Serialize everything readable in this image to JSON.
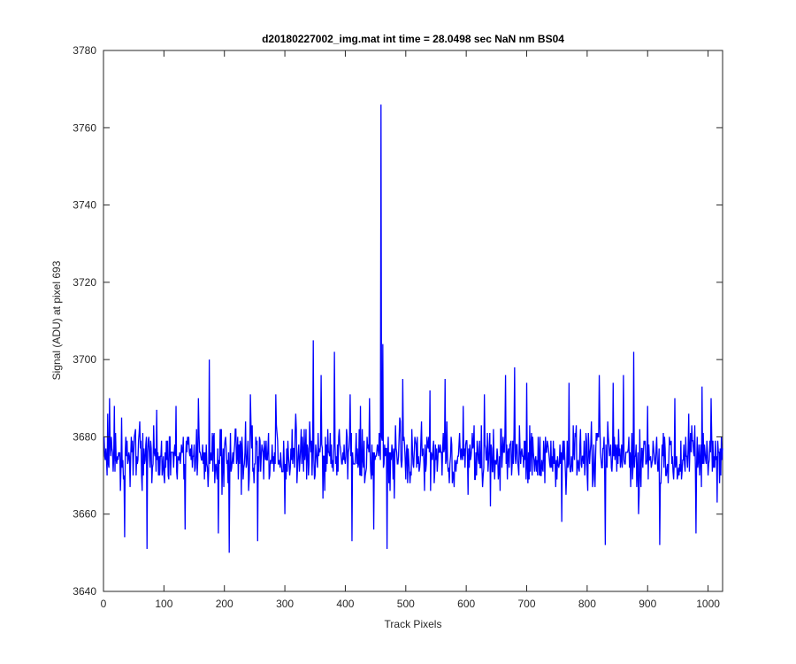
{
  "chart_data": {
    "type": "line",
    "title": "d20180227002_img.mat int time = 28.0498 sec  NaN nm BS04",
    "xlabel": "Track Pixels",
    "ylabel": "Signal (ADU) at pixel 693",
    "xlim": [
      0,
      1024
    ],
    "ylim": [
      3640,
      3780
    ],
    "xticks": [
      0,
      100,
      200,
      300,
      400,
      500,
      600,
      700,
      800,
      900,
      1000
    ],
    "xtick_labels": [
      "0",
      "100",
      "200",
      "300",
      "400",
      "500",
      "600",
      "700",
      "800",
      "900",
      "1000"
    ],
    "yticks": [
      3640,
      3660,
      3680,
      3700,
      3720,
      3740,
      3760,
      3780
    ],
    "ytick_labels": [
      "3640",
      "3660",
      "3680",
      "3700",
      "3720",
      "3740",
      "3760",
      "3780"
    ],
    "grid": false,
    "series": [
      {
        "color": "#0000ff",
        "baseline": 3675,
        "noise_amplitude": 10,
        "n_points": 1024,
        "x_start": 1,
        "peaks": [
          {
            "x": 10,
            "y": 3690
          },
          {
            "x": 18,
            "y": 3688
          },
          {
            "x": 35,
            "y": 3654
          },
          {
            "x": 60,
            "y": 3684
          },
          {
            "x": 72,
            "y": 3651
          },
          {
            "x": 88,
            "y": 3687
          },
          {
            "x": 120,
            "y": 3688
          },
          {
            "x": 135,
            "y": 3656
          },
          {
            "x": 157,
            "y": 3690
          },
          {
            "x": 175,
            "y": 3700
          },
          {
            "x": 190,
            "y": 3655
          },
          {
            "x": 208,
            "y": 3650
          },
          {
            "x": 243,
            "y": 3691
          },
          {
            "x": 255,
            "y": 3653
          },
          {
            "x": 285,
            "y": 3691
          },
          {
            "x": 300,
            "y": 3660
          },
          {
            "x": 318,
            "y": 3686
          },
          {
            "x": 347,
            "y": 3705
          },
          {
            "x": 360,
            "y": 3696
          },
          {
            "x": 382,
            "y": 3702
          },
          {
            "x": 408,
            "y": 3691
          },
          {
            "x": 411,
            "y": 3653
          },
          {
            "x": 425,
            "y": 3688
          },
          {
            "x": 440,
            "y": 3690
          },
          {
            "x": 447,
            "y": 3656
          },
          {
            "x": 459,
            "y": 3766
          },
          {
            "x": 462,
            "y": 3704
          },
          {
            "x": 469,
            "y": 3651
          },
          {
            "x": 495,
            "y": 3695
          },
          {
            "x": 540,
            "y": 3692
          },
          {
            "x": 565,
            "y": 3695
          },
          {
            "x": 595,
            "y": 3688
          },
          {
            "x": 630,
            "y": 3691
          },
          {
            "x": 640,
            "y": 3662
          },
          {
            "x": 665,
            "y": 3696
          },
          {
            "x": 680,
            "y": 3698
          },
          {
            "x": 700,
            "y": 3694
          },
          {
            "x": 758,
            "y": 3658
          },
          {
            "x": 770,
            "y": 3694
          },
          {
            "x": 820,
            "y": 3696
          },
          {
            "x": 830,
            "y": 3652
          },
          {
            "x": 843,
            "y": 3694
          },
          {
            "x": 860,
            "y": 3696
          },
          {
            "x": 877,
            "y": 3702
          },
          {
            "x": 885,
            "y": 3660
          },
          {
            "x": 900,
            "y": 3688
          },
          {
            "x": 920,
            "y": 3652
          },
          {
            "x": 945,
            "y": 3690
          },
          {
            "x": 968,
            "y": 3686
          },
          {
            "x": 980,
            "y": 3655
          },
          {
            "x": 990,
            "y": 3693
          },
          {
            "x": 1005,
            "y": 3690
          },
          {
            "x": 1015,
            "y": 3663
          }
        ]
      }
    ]
  }
}
